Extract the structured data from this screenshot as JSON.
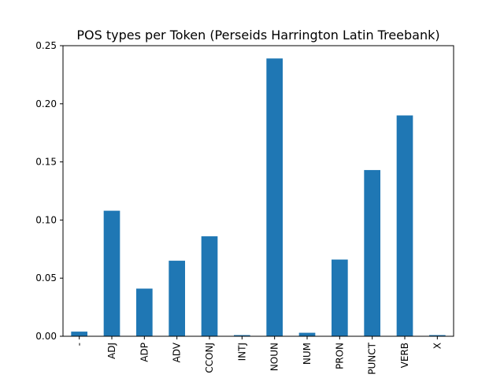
{
  "chart_data": {
    "type": "bar",
    "title": "POS types per Token (Perseids Harrington Latin Treebank)",
    "xlabel": "",
    "ylabel": "",
    "categories": [
      "-",
      "ADJ",
      "ADP",
      "ADV",
      "CCONJ",
      "INTJ",
      "NOUN",
      "NUM",
      "PRON",
      "PUNCT",
      "VERB",
      "X"
    ],
    "values": [
      0.004,
      0.108,
      0.041,
      0.065,
      0.086,
      0.001,
      0.239,
      0.003,
      0.066,
      0.143,
      0.19,
      0.001
    ],
    "ylim": [
      0,
      0.25
    ],
    "yticks": [
      0.0,
      0.05,
      0.1,
      0.15,
      0.2,
      0.25
    ],
    "ytick_labels": [
      "0.00",
      "0.05",
      "0.10",
      "0.15",
      "0.20",
      "0.25"
    ],
    "bar_color": "#1f77b4",
    "grid": false,
    "legend": "none"
  }
}
